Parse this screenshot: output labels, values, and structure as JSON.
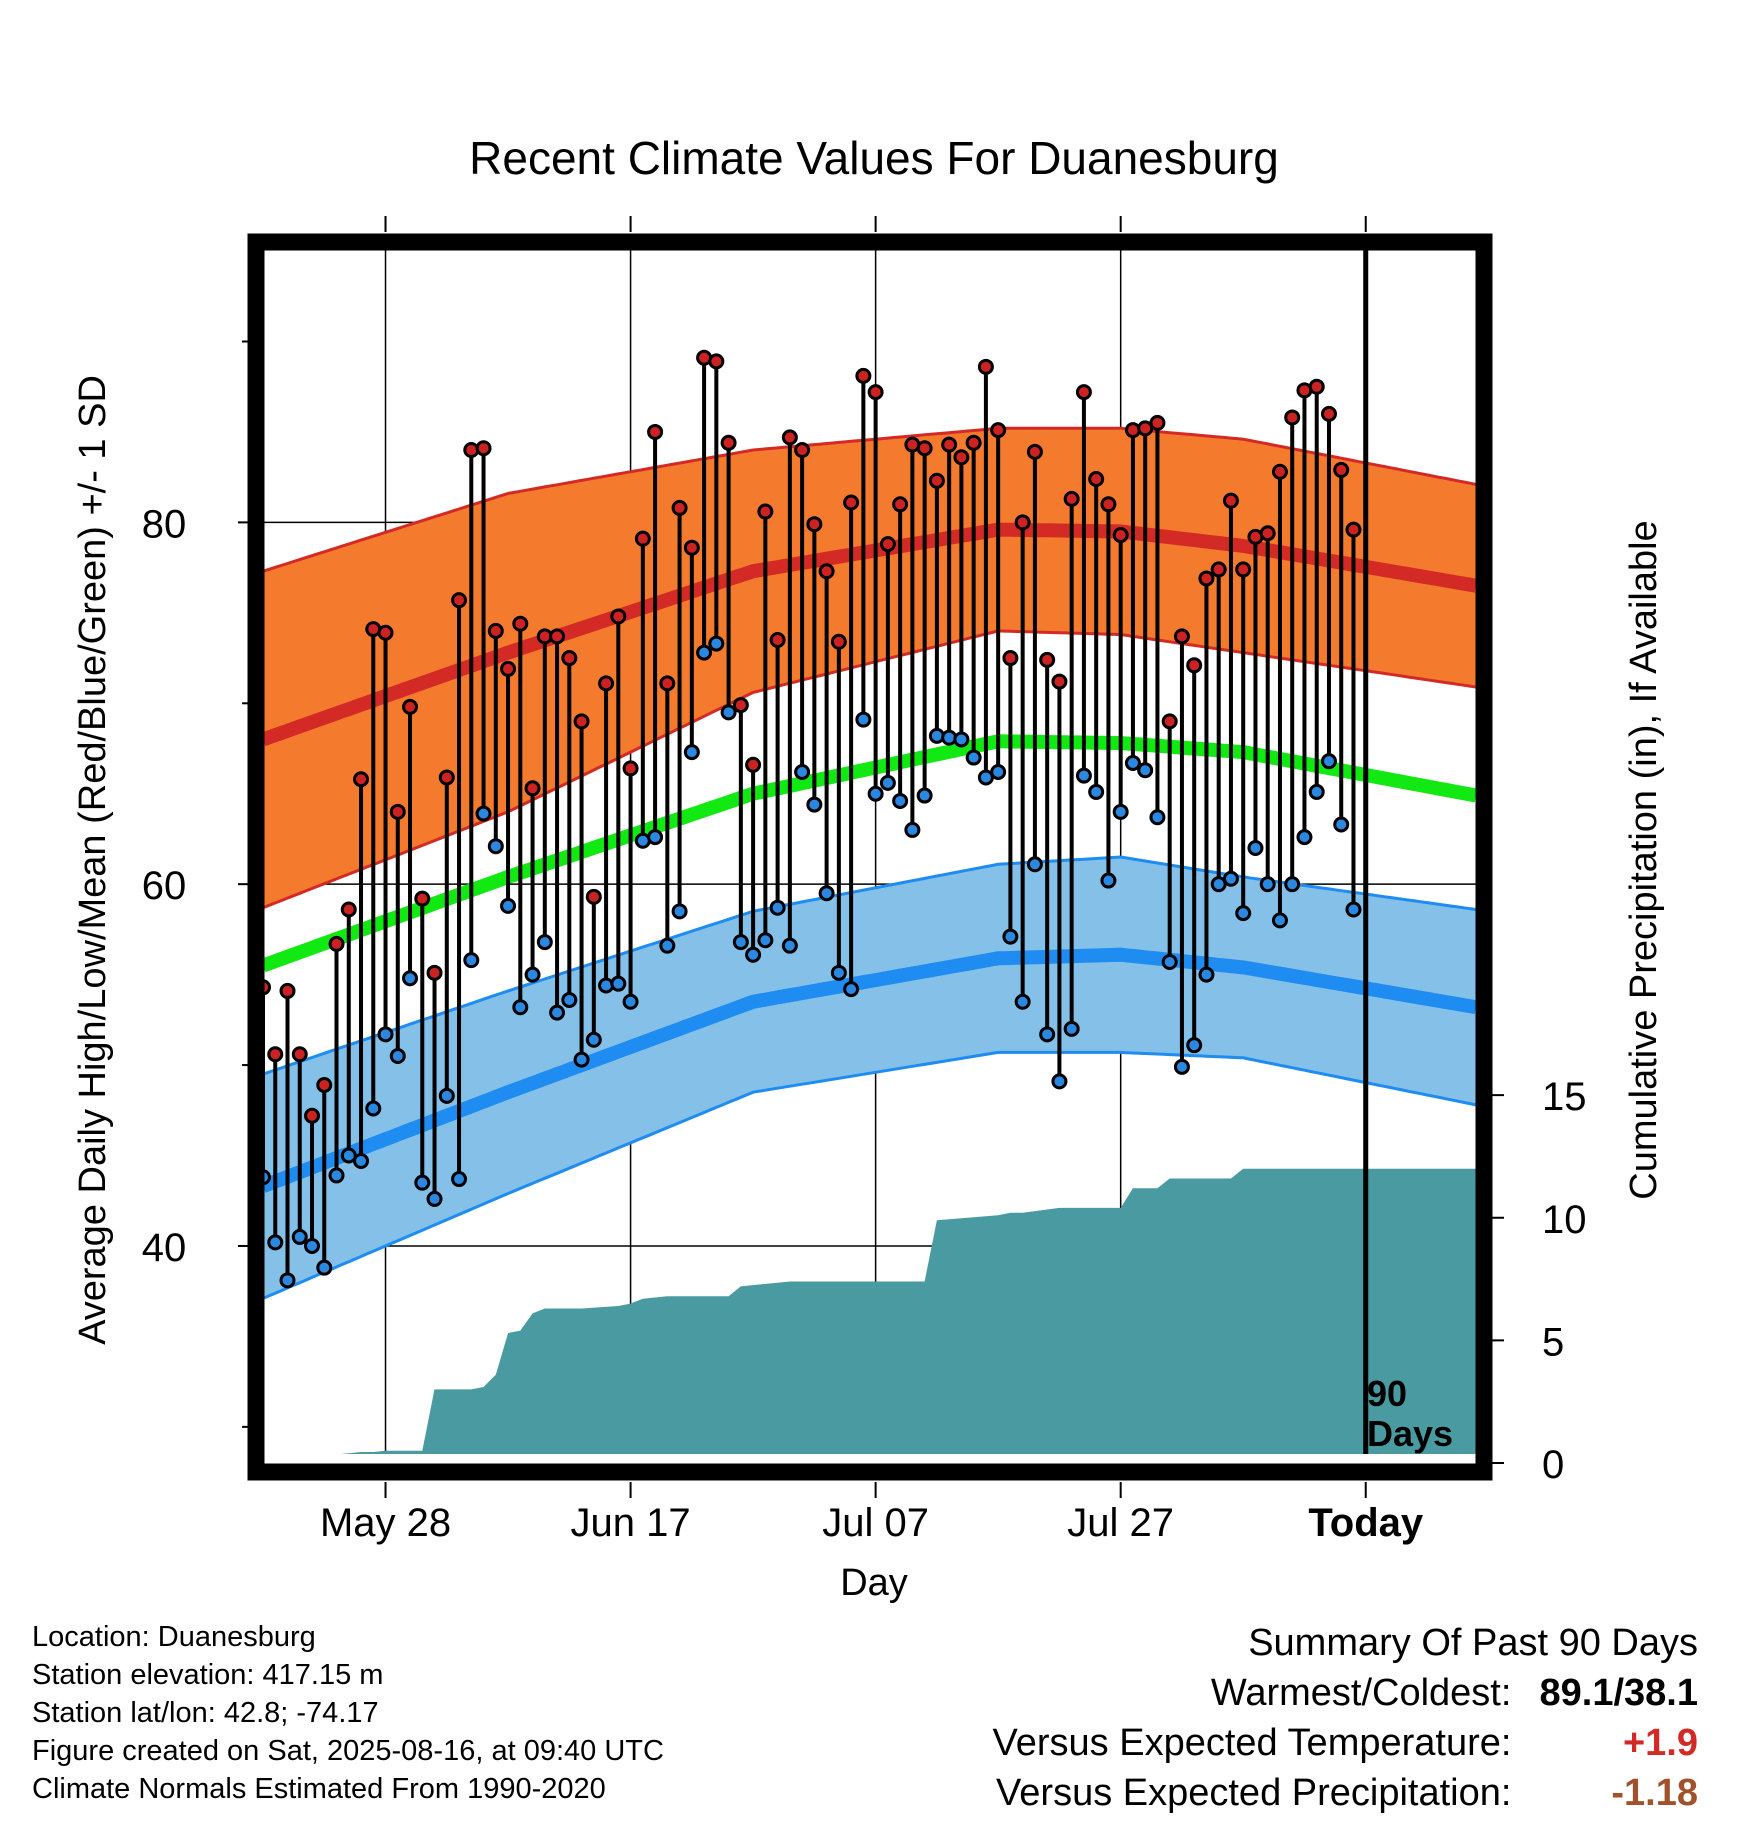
{
  "chart_data": {
    "type": "line",
    "title": "Recent Climate Values For Duanesburg",
    "xlabel": "Day",
    "ylabel": "Average Daily High/Low/Mean (Red/Blue/Green) +/- 1 SD",
    "y2label": "Cumulative Precipitation (in), If Available",
    "x_tick_labels": [
      "May 28",
      "Jun 17",
      "Jul 07",
      "Jul 27",
      "Today"
    ],
    "x_tick_days": [
      10,
      30,
      50,
      70,
      90
    ],
    "x_range_days": [
      0,
      99
    ],
    "ylim": [
      28.5,
      95.5
    ],
    "y_ticks": [
      40,
      60,
      80
    ],
    "y_minor_ticks": [
      30,
      50,
      70,
      90
    ],
    "y2lim": [
      0,
      40
    ],
    "y2_ticks": [
      0,
      5,
      10,
      15
    ],
    "today_day": 90,
    "today_label": [
      "90",
      "Days"
    ],
    "colors": {
      "high_band": "#f47a2e",
      "high_mean": "#d42a25",
      "high_edge": "#d42a25",
      "low_band": "#84c0e8",
      "low_mean": "#1e8cf0",
      "low_edge": "#1e8cf0",
      "mean_line": "#12e812",
      "precip": "#4a9aa2",
      "high_point": "#cc2222",
      "low_point": "#2a88e0"
    },
    "normals": {
      "days": [
        0,
        20,
        40,
        60,
        70,
        80,
        99
      ],
      "high_mean": [
        68.0,
        72.8,
        77.3,
        79.6,
        79.5,
        78.7,
        76.5
      ],
      "high_sd": [
        9.3,
        8.8,
        6.7,
        5.6,
        5.7,
        5.9,
        5.6
      ],
      "low_mean": [
        43.3,
        48.5,
        53.5,
        55.9,
        56.1,
        55.4,
        53.2
      ],
      "low_sd": [
        6.2,
        5.6,
        5.0,
        5.2,
        5.4,
        5.0,
        5.4
      ],
      "mean": [
        55.5,
        60.4,
        65.0,
        67.9,
        67.8,
        67.3,
        64.9
      ]
    },
    "series": [
      {
        "name": "High",
        "values": [
          54.3,
          50.6,
          54.1,
          50.6,
          47.2,
          48.9,
          56.7,
          58.6,
          65.8,
          74.1,
          73.9,
          64.0,
          69.8,
          59.2,
          55.1,
          65.9,
          75.7,
          84.0,
          84.1,
          74.0,
          71.9,
          74.4,
          65.3,
          73.7,
          73.7,
          72.5,
          69.0,
          59.3,
          71.1,
          74.8,
          66.4,
          79.1,
          85.0,
          71.1,
          80.8,
          78.6,
          89.1,
          88.9,
          84.4,
          69.9,
          66.6,
          80.6,
          73.5,
          84.7,
          84.0,
          79.9,
          77.3,
          73.4,
          81.1,
          88.1,
          87.2,
          78.8,
          81.0,
          84.3,
          84.1,
          82.3,
          84.3,
          83.6,
          84.4,
          88.6,
          85.1,
          72.5,
          80.0,
          83.9,
          72.4,
          71.2,
          81.3,
          87.2,
          82.4,
          81.0,
          79.3,
          85.1,
          85.2,
          85.5,
          69.0,
          73.7,
          72.1,
          76.9,
          77.4,
          81.2,
          77.4,
          79.2,
          79.4,
          82.8,
          85.8,
          87.3,
          87.5,
          86.0,
          82.9,
          79.6
        ],
        "color": "#cc2222"
      },
      {
        "name": "Low",
        "values": [
          43.8,
          40.2,
          38.1,
          40.5,
          40.0,
          38.8,
          43.9,
          45.0,
          44.7,
          47.6,
          51.7,
          50.5,
          54.8,
          43.5,
          42.6,
          48.3,
          43.7,
          55.8,
          63.9,
          62.1,
          58.8,
          53.2,
          55.0,
          56.8,
          52.9,
          53.6,
          50.3,
          51.4,
          54.4,
          54.5,
          53.5,
          62.4,
          62.6,
          56.6,
          58.5,
          67.3,
          72.8,
          73.3,
          69.5,
          56.8,
          56.1,
          56.9,
          58.7,
          56.6,
          66.2,
          64.4,
          59.5,
          55.1,
          54.2,
          69.1,
          65.0,
          65.6,
          64.6,
          63.0,
          64.9,
          68.2,
          68.1,
          68.0,
          67.0,
          65.9,
          66.2,
          57.1,
          53.5,
          61.1,
          51.7,
          49.1,
          52.0,
          66.0,
          65.1,
          60.2,
          64.0,
          66.7,
          66.3,
          63.7,
          55.7,
          49.9,
          51.1,
          55.0,
          60.0,
          60.3,
          58.4,
          62.0,
          60.0,
          58.0,
          60.0,
          62.6,
          65.1,
          66.8,
          63.3,
          58.6
        ],
        "color": "#2a88e0"
      },
      {
        "name": "Cumulative Precipitation",
        "x": [
          0,
          3,
          4,
          5,
          6,
          7,
          8,
          9,
          10,
          11,
          12,
          13,
          14,
          17,
          18,
          19,
          20,
          21,
          22,
          23,
          24,
          26,
          29,
          30,
          31,
          33,
          38,
          39,
          43,
          50,
          54,
          55,
          60,
          61,
          62,
          65,
          66,
          70,
          71,
          73,
          74,
          79,
          80,
          81,
          82,
          99
        ],
        "values": [
          0,
          0,
          0.3,
          0.3,
          0.35,
          0.4,
          0.45,
          0.45,
          0.5,
          0.5,
          0.5,
          0.5,
          3.0,
          3.0,
          3.1,
          3.6,
          5.3,
          5.4,
          6.1,
          6.3,
          6.3,
          6.3,
          6.4,
          6.5,
          6.7,
          6.8,
          6.8,
          7.2,
          7.4,
          7.4,
          7.4,
          9.9,
          10.1,
          10.2,
          10.2,
          10.4,
          10.4,
          10.4,
          11.2,
          11.2,
          11.6,
          11.6,
          12.0,
          12.0,
          12.0,
          12.0
        ],
        "color": "#4a9aa2"
      }
    ]
  },
  "info": {
    "location": "Location: Duanesburg",
    "elevation": "Station elevation: 417.15 m",
    "latlon": "Station lat/lon: 42.8; -74.17",
    "created": "Figure created on Sat, 2025-08-16, at 09:40 UTC",
    "normals": "Climate Normals Estimated From 1990-2020"
  },
  "summary": {
    "heading": "Summary Of Past 90 Days",
    "warmest_label": "Warmest/Coldest:",
    "warmest_value": "89.1/38.1",
    "temp_label": "Versus Expected Temperature:",
    "temp_value": "+1.9",
    "temp_color": "#d42a25",
    "precip_label": "Versus Expected Precipitation:",
    "precip_value": "-1.18",
    "precip_color": "#a0522d"
  }
}
